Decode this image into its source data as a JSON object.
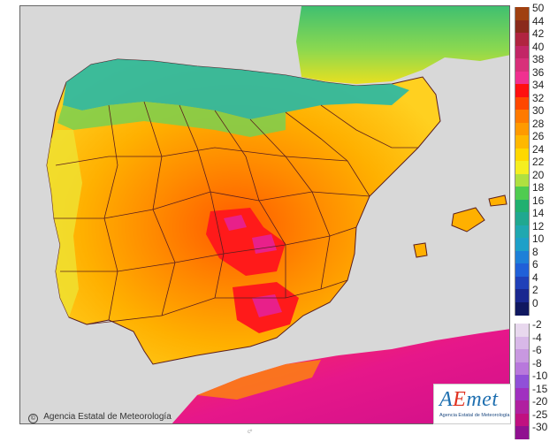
{
  "map": {
    "credit": "Agencia Estatal de Meteorología",
    "logo": {
      "wordmark": "AEmet",
      "subtitle": "Agencia Estatal de Meteorología"
    },
    "background_color": "#d8d8d8",
    "land_region_names": [
      "Iberian Peninsula",
      "Balearic Islands",
      "North Africa (Morocco/Algeria)",
      "Southern France"
    ],
    "dominant_colors": {
      "north_coast": "#27b8a6",
      "central_plateau": "#ffb000",
      "hot_core": "#ff1a1a",
      "africa": "#e6178a"
    }
  },
  "legend": {
    "labels": [
      "50",
      "44",
      "42",
      "40",
      "38",
      "36",
      "34",
      "32",
      "30",
      "28",
      "26",
      "24",
      "22",
      "20",
      "18",
      "16",
      "14",
      "12",
      "10",
      "8",
      "6",
      "4",
      "2",
      "0",
      "-2",
      "-4",
      "-6",
      "-8",
      "-10",
      "-15",
      "-20",
      "-25",
      "-30"
    ],
    "colors": [
      "#a04010",
      "#8a2a1c",
      "#b02440",
      "#c22666",
      "#d8307a",
      "#f03090",
      "#ff1010",
      "#ff4800",
      "#ff7a00",
      "#ff9a00",
      "#ffb800",
      "#ffd800",
      "#f5ee20",
      "#b0e040",
      "#50cc50",
      "#20b070",
      "#20a890",
      "#20a8b0",
      "#1ea0c8",
      "#1e80d8",
      "#2060d8",
      "#2040b8",
      "#1a2890",
      "#101860",
      "#e8d8ee",
      "#d8b8e8",
      "#c898e0",
      "#b878dc",
      "#9050d8",
      "#a030c0",
      "#b020a0",
      "#c01080",
      "#901090"
    ]
  },
  "footer": {
    "mark": "cº"
  }
}
